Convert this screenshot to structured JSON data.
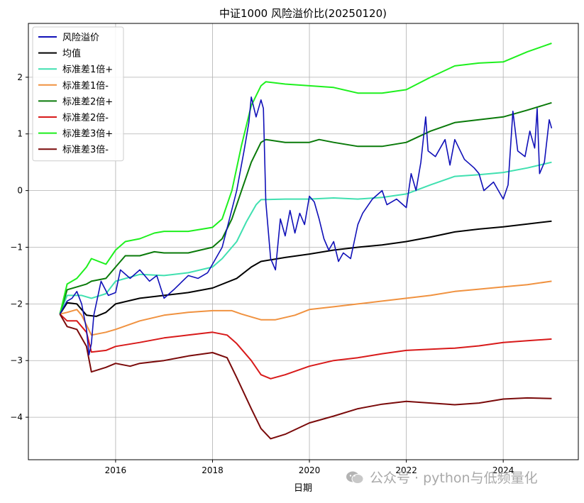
{
  "chart_data": {
    "type": "line",
    "title": "中证1000 风险溢价比(20250120)",
    "xlabel": "日期",
    "ylabel": "",
    "xlim": [
      2014.2,
      2025.55
    ],
    "ylim": [
      -4.75,
      2.95
    ],
    "x_ticks": [
      2016,
      2018,
      2020,
      2022,
      2024
    ],
    "y_ticks": [
      -4,
      -3,
      -2,
      -1,
      0,
      1,
      2
    ],
    "y_tick_labels": [
      "−4",
      "−3",
      "−2",
      "−1",
      "0",
      "1",
      "2"
    ],
    "grid": true,
    "legend_position": "top-left",
    "series": [
      {
        "name": "风险溢价",
        "color": "#1010b8",
        "width": 1.6,
        "points": [
          [
            2014.85,
            -2.18
          ],
          [
            2015.0,
            -1.95
          ],
          [
            2015.1,
            -1.9
          ],
          [
            2015.2,
            -1.78
          ],
          [
            2015.3,
            -2.0
          ],
          [
            2015.4,
            -2.45
          ],
          [
            2015.45,
            -2.9
          ],
          [
            2015.5,
            -2.7
          ],
          [
            2015.55,
            -2.2
          ],
          [
            2015.7,
            -1.6
          ],
          [
            2015.85,
            -1.85
          ],
          [
            2016.0,
            -1.8
          ],
          [
            2016.1,
            -1.4
          ],
          [
            2016.3,
            -1.55
          ],
          [
            2016.5,
            -1.4
          ],
          [
            2016.7,
            -1.6
          ],
          [
            2016.85,
            -1.5
          ],
          [
            2017.0,
            -1.9
          ],
          [
            2017.2,
            -1.75
          ],
          [
            2017.5,
            -1.5
          ],
          [
            2017.7,
            -1.55
          ],
          [
            2017.9,
            -1.45
          ],
          [
            2018.0,
            -1.3
          ],
          [
            2018.2,
            -1.0
          ],
          [
            2018.35,
            -0.5
          ],
          [
            2018.5,
            0.0
          ],
          [
            2018.65,
            0.7
          ],
          [
            2018.75,
            1.2
          ],
          [
            2018.8,
            1.65
          ],
          [
            2018.9,
            1.3
          ],
          [
            2019.0,
            1.6
          ],
          [
            2019.05,
            1.45
          ],
          [
            2019.1,
            -0.2
          ],
          [
            2019.2,
            -1.2
          ],
          [
            2019.3,
            -1.4
          ],
          [
            2019.4,
            -0.5
          ],
          [
            2019.5,
            -0.8
          ],
          [
            2019.6,
            -0.35
          ],
          [
            2019.7,
            -0.75
          ],
          [
            2019.8,
            -0.4
          ],
          [
            2019.9,
            -0.6
          ],
          [
            2020.0,
            -0.1
          ],
          [
            2020.1,
            -0.2
          ],
          [
            2020.2,
            -0.5
          ],
          [
            2020.3,
            -0.85
          ],
          [
            2020.4,
            -1.05
          ],
          [
            2020.5,
            -0.9
          ],
          [
            2020.6,
            -1.25
          ],
          [
            2020.7,
            -1.1
          ],
          [
            2020.85,
            -1.2
          ],
          [
            2021.0,
            -0.6
          ],
          [
            2021.1,
            -0.4
          ],
          [
            2021.3,
            -0.15
          ],
          [
            2021.5,
            0.0
          ],
          [
            2021.6,
            -0.25
          ],
          [
            2021.8,
            -0.15
          ],
          [
            2022.0,
            -0.3
          ],
          [
            2022.1,
            0.3
          ],
          [
            2022.2,
            0.0
          ],
          [
            2022.3,
            0.5
          ],
          [
            2022.4,
            1.3
          ],
          [
            2022.45,
            0.7
          ],
          [
            2022.6,
            0.6
          ],
          [
            2022.8,
            0.9
          ],
          [
            2022.9,
            0.45
          ],
          [
            2023.0,
            0.9
          ],
          [
            2023.2,
            0.55
          ],
          [
            2023.4,
            0.4
          ],
          [
            2023.5,
            0.3
          ],
          [
            2023.6,
            0.0
          ],
          [
            2023.8,
            0.15
          ],
          [
            2024.0,
            -0.15
          ],
          [
            2024.1,
            0.1
          ],
          [
            2024.2,
            1.4
          ],
          [
            2024.3,
            0.7
          ],
          [
            2024.45,
            0.6
          ],
          [
            2024.55,
            1.05
          ],
          [
            2024.65,
            0.75
          ],
          [
            2024.7,
            1.45
          ],
          [
            2024.75,
            0.3
          ],
          [
            2024.85,
            0.5
          ],
          [
            2024.95,
            1.25
          ],
          [
            2025.0,
            1.1
          ]
        ]
      },
      {
        "name": "均值",
        "color": "#000000",
        "width": 2,
        "points": [
          [
            2014.85,
            -2.18
          ],
          [
            2015.0,
            -1.98
          ],
          [
            2015.2,
            -2.0
          ],
          [
            2015.4,
            -2.2
          ],
          [
            2015.6,
            -2.22
          ],
          [
            2015.8,
            -2.15
          ],
          [
            2016.0,
            -2.0
          ],
          [
            2016.5,
            -1.9
          ],
          [
            2017.0,
            -1.85
          ],
          [
            2017.5,
            -1.8
          ],
          [
            2018.0,
            -1.72
          ],
          [
            2018.5,
            -1.55
          ],
          [
            2018.8,
            -1.35
          ],
          [
            2019.0,
            -1.25
          ],
          [
            2019.5,
            -1.18
          ],
          [
            2020.0,
            -1.12
          ],
          [
            2020.5,
            -1.05
          ],
          [
            2021.0,
            -1.0
          ],
          [
            2021.5,
            -0.96
          ],
          [
            2022.0,
            -0.9
          ],
          [
            2022.5,
            -0.82
          ],
          [
            2023.0,
            -0.73
          ],
          [
            2023.5,
            -0.68
          ],
          [
            2024.0,
            -0.64
          ],
          [
            2024.5,
            -0.59
          ],
          [
            2025.0,
            -0.54
          ]
        ]
      },
      {
        "name": "标准差1倍+",
        "color": "#40e0b0",
        "width": 2,
        "points": [
          [
            2014.85,
            -2.18
          ],
          [
            2015.0,
            -1.85
          ],
          [
            2015.3,
            -1.85
          ],
          [
            2015.5,
            -1.9
          ],
          [
            2015.8,
            -1.82
          ],
          [
            2016.0,
            -1.6
          ],
          [
            2016.5,
            -1.48
          ],
          [
            2017.0,
            -1.5
          ],
          [
            2017.5,
            -1.45
          ],
          [
            2018.0,
            -1.35
          ],
          [
            2018.2,
            -1.2
          ],
          [
            2018.5,
            -0.9
          ],
          [
            2018.7,
            -0.55
          ],
          [
            2018.9,
            -0.25
          ],
          [
            2019.0,
            -0.16
          ],
          [
            2019.5,
            -0.15
          ],
          [
            2020.0,
            -0.15
          ],
          [
            2020.5,
            -0.13
          ],
          [
            2021.0,
            -0.15
          ],
          [
            2021.5,
            -0.12
          ],
          [
            2022.0,
            -0.06
          ],
          [
            2022.5,
            0.1
          ],
          [
            2023.0,
            0.25
          ],
          [
            2023.5,
            0.28
          ],
          [
            2024.0,
            0.32
          ],
          [
            2024.5,
            0.4
          ],
          [
            2025.0,
            0.5
          ]
        ]
      },
      {
        "name": "标准差1倍-",
        "color": "#f09240",
        "width": 2,
        "points": [
          [
            2014.85,
            -2.18
          ],
          [
            2015.0,
            -2.15
          ],
          [
            2015.2,
            -2.1
          ],
          [
            2015.3,
            -2.2
          ],
          [
            2015.5,
            -2.55
          ],
          [
            2015.8,
            -2.5
          ],
          [
            2016.0,
            -2.45
          ],
          [
            2016.5,
            -2.3
          ],
          [
            2017.0,
            -2.2
          ],
          [
            2017.5,
            -2.15
          ],
          [
            2018.0,
            -2.12
          ],
          [
            2018.4,
            -2.12
          ],
          [
            2018.6,
            -2.18
          ],
          [
            2019.0,
            -2.28
          ],
          [
            2019.3,
            -2.28
          ],
          [
            2019.7,
            -2.2
          ],
          [
            2020.0,
            -2.1
          ],
          [
            2020.5,
            -2.05
          ],
          [
            2021.0,
            -2.0
          ],
          [
            2021.5,
            -1.95
          ],
          [
            2022.0,
            -1.9
          ],
          [
            2022.5,
            -1.85
          ],
          [
            2023.0,
            -1.78
          ],
          [
            2023.5,
            -1.74
          ],
          [
            2024.0,
            -1.7
          ],
          [
            2024.5,
            -1.66
          ],
          [
            2025.0,
            -1.6
          ]
        ]
      },
      {
        "name": "标准差2倍+",
        "color": "#0a7a0a",
        "width": 2,
        "points": [
          [
            2014.85,
            -2.18
          ],
          [
            2015.0,
            -1.75
          ],
          [
            2015.2,
            -1.7
          ],
          [
            2015.4,
            -1.65
          ],
          [
            2015.5,
            -1.6
          ],
          [
            2015.8,
            -1.55
          ],
          [
            2016.0,
            -1.35
          ],
          [
            2016.2,
            -1.15
          ],
          [
            2016.5,
            -1.15
          ],
          [
            2016.8,
            -1.08
          ],
          [
            2017.0,
            -1.1
          ],
          [
            2017.5,
            -1.1
          ],
          [
            2018.0,
            -1.0
          ],
          [
            2018.2,
            -0.85
          ],
          [
            2018.4,
            -0.5
          ],
          [
            2018.6,
            0.0
          ],
          [
            2018.8,
            0.5
          ],
          [
            2019.0,
            0.85
          ],
          [
            2019.1,
            0.9
          ],
          [
            2019.5,
            0.85
          ],
          [
            2020.0,
            0.85
          ],
          [
            2020.2,
            0.9
          ],
          [
            2020.5,
            0.85
          ],
          [
            2021.0,
            0.78
          ],
          [
            2021.5,
            0.78
          ],
          [
            2022.0,
            0.85
          ],
          [
            2022.5,
            1.05
          ],
          [
            2023.0,
            1.2
          ],
          [
            2023.5,
            1.25
          ],
          [
            2024.0,
            1.3
          ],
          [
            2024.5,
            1.42
          ],
          [
            2025.0,
            1.55
          ]
        ]
      },
      {
        "name": "标准差2倍-",
        "color": "#d81a1a",
        "width": 2,
        "points": [
          [
            2014.85,
            -2.18
          ],
          [
            2015.0,
            -2.3
          ],
          [
            2015.2,
            -2.3
          ],
          [
            2015.4,
            -2.5
          ],
          [
            2015.5,
            -2.85
          ],
          [
            2015.8,
            -2.82
          ],
          [
            2016.0,
            -2.75
          ],
          [
            2016.5,
            -2.68
          ],
          [
            2017.0,
            -2.6
          ],
          [
            2017.5,
            -2.55
          ],
          [
            2018.0,
            -2.5
          ],
          [
            2018.3,
            -2.55
          ],
          [
            2018.5,
            -2.7
          ],
          [
            2018.8,
            -3.0
          ],
          [
            2019.0,
            -3.25
          ],
          [
            2019.2,
            -3.32
          ],
          [
            2019.5,
            -3.25
          ],
          [
            2020.0,
            -3.1
          ],
          [
            2020.5,
            -3.0
          ],
          [
            2021.0,
            -2.95
          ],
          [
            2021.5,
            -2.88
          ],
          [
            2022.0,
            -2.82
          ],
          [
            2022.5,
            -2.8
          ],
          [
            2023.0,
            -2.78
          ],
          [
            2023.5,
            -2.74
          ],
          [
            2024.0,
            -2.68
          ],
          [
            2024.5,
            -2.65
          ],
          [
            2025.0,
            -2.62
          ]
        ]
      },
      {
        "name": "标准差3倍+",
        "color": "#1ef01e",
        "width": 2,
        "points": [
          [
            2014.85,
            -2.18
          ],
          [
            2015.0,
            -1.65
          ],
          [
            2015.2,
            -1.55
          ],
          [
            2015.4,
            -1.35
          ],
          [
            2015.5,
            -1.2
          ],
          [
            2015.8,
            -1.3
          ],
          [
            2016.0,
            -1.05
          ],
          [
            2016.2,
            -0.9
          ],
          [
            2016.5,
            -0.85
          ],
          [
            2016.8,
            -0.75
          ],
          [
            2017.0,
            -0.72
          ],
          [
            2017.5,
            -0.72
          ],
          [
            2018.0,
            -0.65
          ],
          [
            2018.2,
            -0.5
          ],
          [
            2018.4,
            0.0
          ],
          [
            2018.6,
            0.8
          ],
          [
            2018.8,
            1.5
          ],
          [
            2019.0,
            1.85
          ],
          [
            2019.1,
            1.92
          ],
          [
            2019.5,
            1.88
          ],
          [
            2020.0,
            1.85
          ],
          [
            2020.5,
            1.82
          ],
          [
            2021.0,
            1.72
          ],
          [
            2021.5,
            1.72
          ],
          [
            2022.0,
            1.78
          ],
          [
            2022.5,
            2.0
          ],
          [
            2023.0,
            2.2
          ],
          [
            2023.5,
            2.25
          ],
          [
            2024.0,
            2.27
          ],
          [
            2024.5,
            2.45
          ],
          [
            2025.0,
            2.6
          ]
        ]
      },
      {
        "name": "标准差3倍-",
        "color": "#7a0a0a",
        "width": 2,
        "points": [
          [
            2014.85,
            -2.18
          ],
          [
            2015.0,
            -2.4
          ],
          [
            2015.2,
            -2.45
          ],
          [
            2015.4,
            -2.75
          ],
          [
            2015.5,
            -3.2
          ],
          [
            2015.8,
            -3.12
          ],
          [
            2016.0,
            -3.05
          ],
          [
            2016.3,
            -3.1
          ],
          [
            2016.5,
            -3.05
          ],
          [
            2017.0,
            -3.0
          ],
          [
            2017.5,
            -2.92
          ],
          [
            2018.0,
            -2.86
          ],
          [
            2018.3,
            -2.95
          ],
          [
            2018.5,
            -3.3
          ],
          [
            2018.8,
            -3.85
          ],
          [
            2019.0,
            -4.2
          ],
          [
            2019.2,
            -4.38
          ],
          [
            2019.5,
            -4.3
          ],
          [
            2020.0,
            -4.1
          ],
          [
            2020.5,
            -3.98
          ],
          [
            2021.0,
            -3.85
          ],
          [
            2021.5,
            -3.77
          ],
          [
            2022.0,
            -3.72
          ],
          [
            2022.5,
            -3.75
          ],
          [
            2023.0,
            -3.78
          ],
          [
            2023.5,
            -3.75
          ],
          [
            2024.0,
            -3.68
          ],
          [
            2024.5,
            -3.66
          ],
          [
            2025.0,
            -3.67
          ]
        ]
      }
    ]
  },
  "watermark": {
    "text": "公众号 · python与低频量化",
    "icon": "wechat-icon"
  }
}
